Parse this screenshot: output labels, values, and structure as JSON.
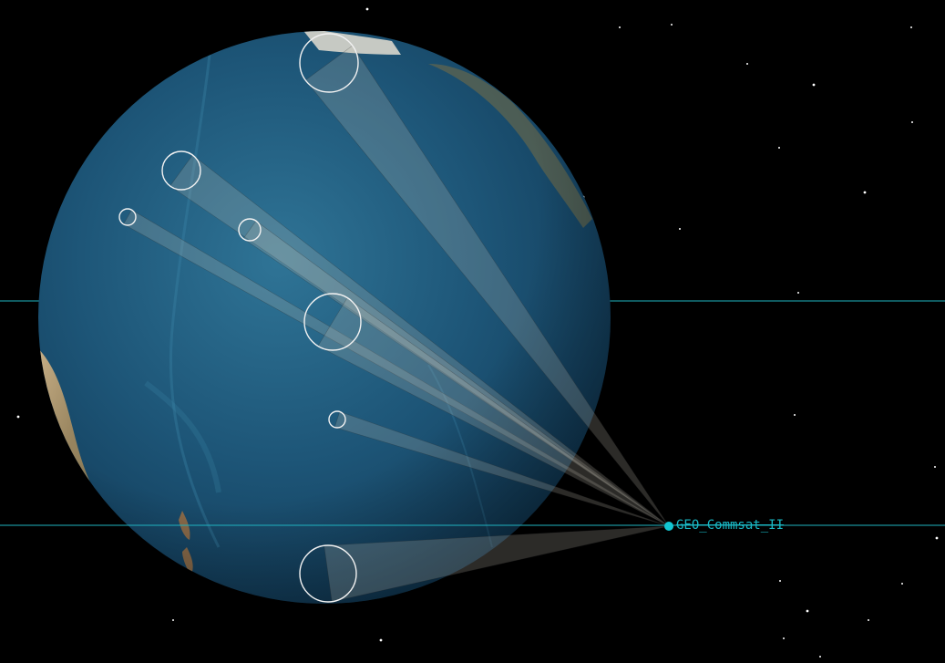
{
  "scene": {
    "background_color": "#000000",
    "orbit_line_color": "#1fb3c0",
    "satellite": {
      "name": "GEO_Commsat_II",
      "marker_color": "#12c6d2",
      "label_color": "#19b8c4"
    },
    "coverage_ring_color": "#f2f2f2",
    "cone_color": "#c9c3b8",
    "ocean_colors": [
      "#2d6f8f",
      "#1c4d6a",
      "#123a55"
    ],
    "land_colors": [
      "#b79a72",
      "#8a7a55",
      "#d6c4a2"
    ],
    "target_count": 7
  }
}
